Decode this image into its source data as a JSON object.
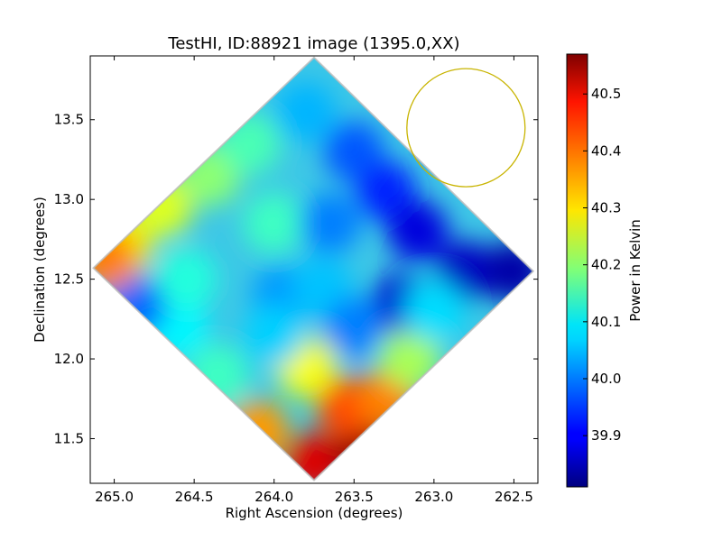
{
  "chart_data": {
    "type": "heatmap",
    "title": "TestHI, ID:88921 image (1395.0,XX)",
    "xlabel": "Right Ascension (degrees)",
    "ylabel": "Declination (degrees)",
    "xlim": [
      265.15,
      262.35
    ],
    "ylim": [
      11.22,
      13.9
    ],
    "x_reversed": true,
    "xticks": [
      "265.0",
      "264.5",
      "264.0",
      "263.5",
      "263.0",
      "262.5"
    ],
    "xtick_values": [
      265.0,
      264.5,
      264.0,
      263.5,
      263.0,
      262.5
    ],
    "yticks": [
      "11.5",
      "12.0",
      "12.5",
      "13.0",
      "13.5"
    ],
    "ytick_values": [
      11.5,
      12.0,
      12.5,
      13.0,
      13.5
    ],
    "grid": false,
    "map_outline": {
      "corners": [
        {
          "ra": 263.75,
          "dec": 13.89
        },
        {
          "ra": 262.38,
          "dec": 12.55
        },
        {
          "ra": 263.75,
          "dec": 11.24
        },
        {
          "ra": 265.13,
          "dec": 12.57
        }
      ]
    },
    "field_samples": [
      {
        "ra": 263.75,
        "dec": 11.35,
        "value": 40.5
      },
      {
        "ra": 263.45,
        "dec": 11.45,
        "value": 40.56
      },
      {
        "ra": 263.55,
        "dec": 11.7,
        "value": 40.42
      },
      {
        "ra": 263.3,
        "dec": 11.75,
        "value": 40.38
      },
      {
        "ra": 264.1,
        "dec": 11.55,
        "value": 40.36
      },
      {
        "ra": 263.8,
        "dec": 11.95,
        "value": 40.28
      },
      {
        "ra": 263.15,
        "dec": 12.0,
        "value": 40.22
      },
      {
        "ra": 264.35,
        "dec": 11.9,
        "value": 40.14
      },
      {
        "ra": 264.6,
        "dec": 12.2,
        "value": 40.09
      },
      {
        "ra": 264.85,
        "dec": 12.35,
        "value": 39.98
      },
      {
        "ra": 264.55,
        "dec": 12.5,
        "value": 40.12
      },
      {
        "ra": 264.95,
        "dec": 12.7,
        "value": 40.3
      },
      {
        "ra": 265.05,
        "dec": 12.62,
        "value": 40.38
      },
      {
        "ra": 264.7,
        "dec": 12.95,
        "value": 40.26
      },
      {
        "ra": 264.4,
        "dec": 13.15,
        "value": 40.2
      },
      {
        "ra": 264.15,
        "dec": 13.35,
        "value": 40.15
      },
      {
        "ra": 264.0,
        "dec": 12.85,
        "value": 40.14
      },
      {
        "ra": 263.95,
        "dec": 12.4,
        "value": 40.02
      },
      {
        "ra": 263.7,
        "dec": 12.45,
        "value": 40.05
      },
      {
        "ra": 263.65,
        "dec": 12.85,
        "value": 40.0
      },
      {
        "ra": 263.8,
        "dec": 13.55,
        "value": 40.04
      },
      {
        "ra": 263.5,
        "dec": 13.3,
        "value": 39.97
      },
      {
        "ra": 263.3,
        "dec": 13.05,
        "value": 39.93
      },
      {
        "ra": 263.1,
        "dec": 12.8,
        "value": 39.88
      },
      {
        "ra": 262.8,
        "dec": 12.55,
        "value": 39.86
      },
      {
        "ra": 262.5,
        "dec": 12.55,
        "value": 39.84
      },
      {
        "ra": 263.2,
        "dec": 12.35,
        "value": 39.87
      },
      {
        "ra": 263.5,
        "dec": 12.2,
        "value": 40.0
      },
      {
        "ra": 264.0,
        "dec": 12.15,
        "value": 40.06
      },
      {
        "ra": 263.0,
        "dec": 12.3,
        "value": 40.07
      }
    ],
    "circle": {
      "center_ra": 262.8,
      "center_dec": 13.45,
      "radius_deg": 0.37,
      "color": "#c8b400"
    },
    "colorbar": {
      "label": "Power in Kelvin",
      "vmin": 39.81,
      "vmax": 40.57,
      "colormap": "jet",
      "ticks": [
        "39.9",
        "40.0",
        "40.1",
        "40.2",
        "40.3",
        "40.4",
        "40.5"
      ],
      "tick_values": [
        39.9,
        40.0,
        40.1,
        40.2,
        40.3,
        40.4,
        40.5
      ]
    }
  }
}
